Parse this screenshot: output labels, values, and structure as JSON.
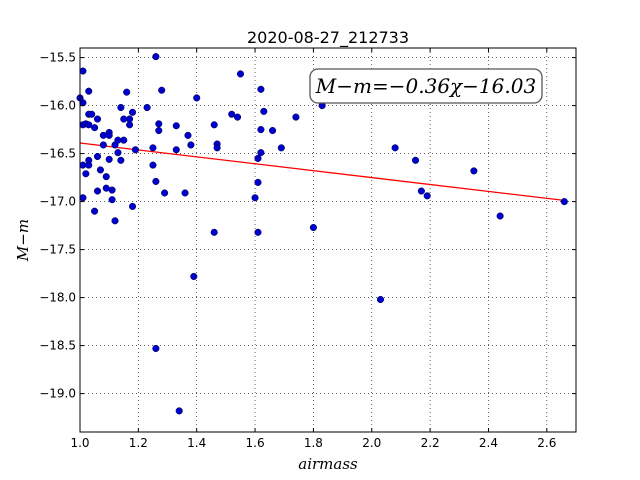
{
  "chart_data": {
    "type": "scatter",
    "title": "2020-08-27_212733",
    "xlabel": "airmass",
    "ylabel": "M−m",
    "xlim": [
      1.0,
      2.7
    ],
    "ylim": [
      -15.4,
      -19.4
    ],
    "xticks": [
      1.0,
      1.2,
      1.4,
      1.6,
      1.8,
      2.0,
      2.2,
      2.4,
      2.6
    ],
    "xtick_labels": [
      "1.0",
      "1.2",
      "1.4",
      "1.6",
      "1.8",
      "2.0",
      "2.2",
      "2.4",
      "2.6"
    ],
    "yticks": [
      -15.5,
      -16.0,
      -16.5,
      -17.0,
      -17.5,
      -18.0,
      -18.5,
      -19.0
    ],
    "ytick_labels": [
      "−15.5",
      "−16.0",
      "−16.5",
      "−17.0",
      "−17.5",
      "−18.0",
      "−18.5",
      "−19.0"
    ],
    "grid": true,
    "annotation": "M−m=−0.36χ−16.03",
    "fit_line": {
      "slope": -0.36,
      "intercept": -16.03,
      "x_range": [
        1.0,
        2.66
      ],
      "color": "#ff0000"
    },
    "point_color": "#0000cc",
    "points": [
      {
        "x": 1.0,
        "y": -15.92
      },
      {
        "x": 1.01,
        "y": -15.64
      },
      {
        "x": 1.01,
        "y": -15.97
      },
      {
        "x": 1.01,
        "y": -16.2
      },
      {
        "x": 1.01,
        "y": -16.62
      },
      {
        "x": 1.01,
        "y": -16.96
      },
      {
        "x": 1.02,
        "y": -16.71
      },
      {
        "x": 1.02,
        "y": -16.19
      },
      {
        "x": 1.03,
        "y": -15.85
      },
      {
        "x": 1.03,
        "y": -16.09
      },
      {
        "x": 1.03,
        "y": -16.2
      },
      {
        "x": 1.03,
        "y": -16.57
      },
      {
        "x": 1.03,
        "y": -16.62
      },
      {
        "x": 1.04,
        "y": -16.09
      },
      {
        "x": 1.05,
        "y": -16.23
      },
      {
        "x": 1.05,
        "y": -17.1
      },
      {
        "x": 1.06,
        "y": -16.14
      },
      {
        "x": 1.06,
        "y": -16.53
      },
      {
        "x": 1.06,
        "y": -16.89
      },
      {
        "x": 1.07,
        "y": -16.67
      },
      {
        "x": 1.08,
        "y": -16.31
      },
      {
        "x": 1.08,
        "y": -16.41
      },
      {
        "x": 1.09,
        "y": -16.74
      },
      {
        "x": 1.09,
        "y": -16.86
      },
      {
        "x": 1.1,
        "y": -16.28
      },
      {
        "x": 1.1,
        "y": -16.31
      },
      {
        "x": 1.1,
        "y": -16.56
      },
      {
        "x": 1.11,
        "y": -16.88
      },
      {
        "x": 1.11,
        "y": -16.98
      },
      {
        "x": 1.12,
        "y": -17.2
      },
      {
        "x": 1.12,
        "y": -16.41
      },
      {
        "x": 1.13,
        "y": -16.36
      },
      {
        "x": 1.13,
        "y": -16.49
      },
      {
        "x": 1.14,
        "y": -16.02
      },
      {
        "x": 1.14,
        "y": -16.57
      },
      {
        "x": 1.15,
        "y": -16.14
      },
      {
        "x": 1.15,
        "y": -16.36
      },
      {
        "x": 1.16,
        "y": -15.86
      },
      {
        "x": 1.17,
        "y": -16.14
      },
      {
        "x": 1.17,
        "y": -16.2
      },
      {
        "x": 1.18,
        "y": -16.07
      },
      {
        "x": 1.18,
        "y": -17.05
      },
      {
        "x": 1.19,
        "y": -16.46
      },
      {
        "x": 1.23,
        "y": -16.02
      },
      {
        "x": 1.25,
        "y": -16.44
      },
      {
        "x": 1.25,
        "y": -16.62
      },
      {
        "x": 1.26,
        "y": -15.49
      },
      {
        "x": 1.26,
        "y": -16.79
      },
      {
        "x": 1.26,
        "y": -18.53
      },
      {
        "x": 1.27,
        "y": -16.19
      },
      {
        "x": 1.27,
        "y": -16.26
      },
      {
        "x": 1.28,
        "y": -15.84
      },
      {
        "x": 1.29,
        "y": -16.91
      },
      {
        "x": 1.33,
        "y": -16.21
      },
      {
        "x": 1.33,
        "y": -16.46
      },
      {
        "x": 1.34,
        "y": -19.18
      },
      {
        "x": 1.36,
        "y": -16.91
      },
      {
        "x": 1.37,
        "y": -16.31
      },
      {
        "x": 1.38,
        "y": -16.41
      },
      {
        "x": 1.39,
        "y": -17.78
      },
      {
        "x": 1.4,
        "y": -15.92
      },
      {
        "x": 1.46,
        "y": -17.32
      },
      {
        "x": 1.46,
        "y": -16.2
      },
      {
        "x": 1.47,
        "y": -16.4
      },
      {
        "x": 1.47,
        "y": -16.44
      },
      {
        "x": 1.52,
        "y": -16.09
      },
      {
        "x": 1.54,
        "y": -16.12
      },
      {
        "x": 1.55,
        "y": -15.67
      },
      {
        "x": 1.6,
        "y": -16.96
      },
      {
        "x": 1.61,
        "y": -16.55
      },
      {
        "x": 1.61,
        "y": -16.8
      },
      {
        "x": 1.61,
        "y": -17.32
      },
      {
        "x": 1.62,
        "y": -15.83
      },
      {
        "x": 1.62,
        "y": -16.49
      },
      {
        "x": 1.62,
        "y": -16.25
      },
      {
        "x": 1.63,
        "y": -16.06
      },
      {
        "x": 1.66,
        "y": -16.26
      },
      {
        "x": 1.69,
        "y": -16.44
      },
      {
        "x": 1.74,
        "y": -16.12
      },
      {
        "x": 1.8,
        "y": -17.27
      },
      {
        "x": 1.83,
        "y": -16.0
      },
      {
        "x": 2.03,
        "y": -18.02
      },
      {
        "x": 2.08,
        "y": -16.44
      },
      {
        "x": 2.15,
        "y": -16.57
      },
      {
        "x": 2.17,
        "y": -16.89
      },
      {
        "x": 2.19,
        "y": -16.94
      },
      {
        "x": 2.35,
        "y": -16.68
      },
      {
        "x": 2.44,
        "y": -17.15
      },
      {
        "x": 2.66,
        "y": -17.0
      }
    ]
  }
}
